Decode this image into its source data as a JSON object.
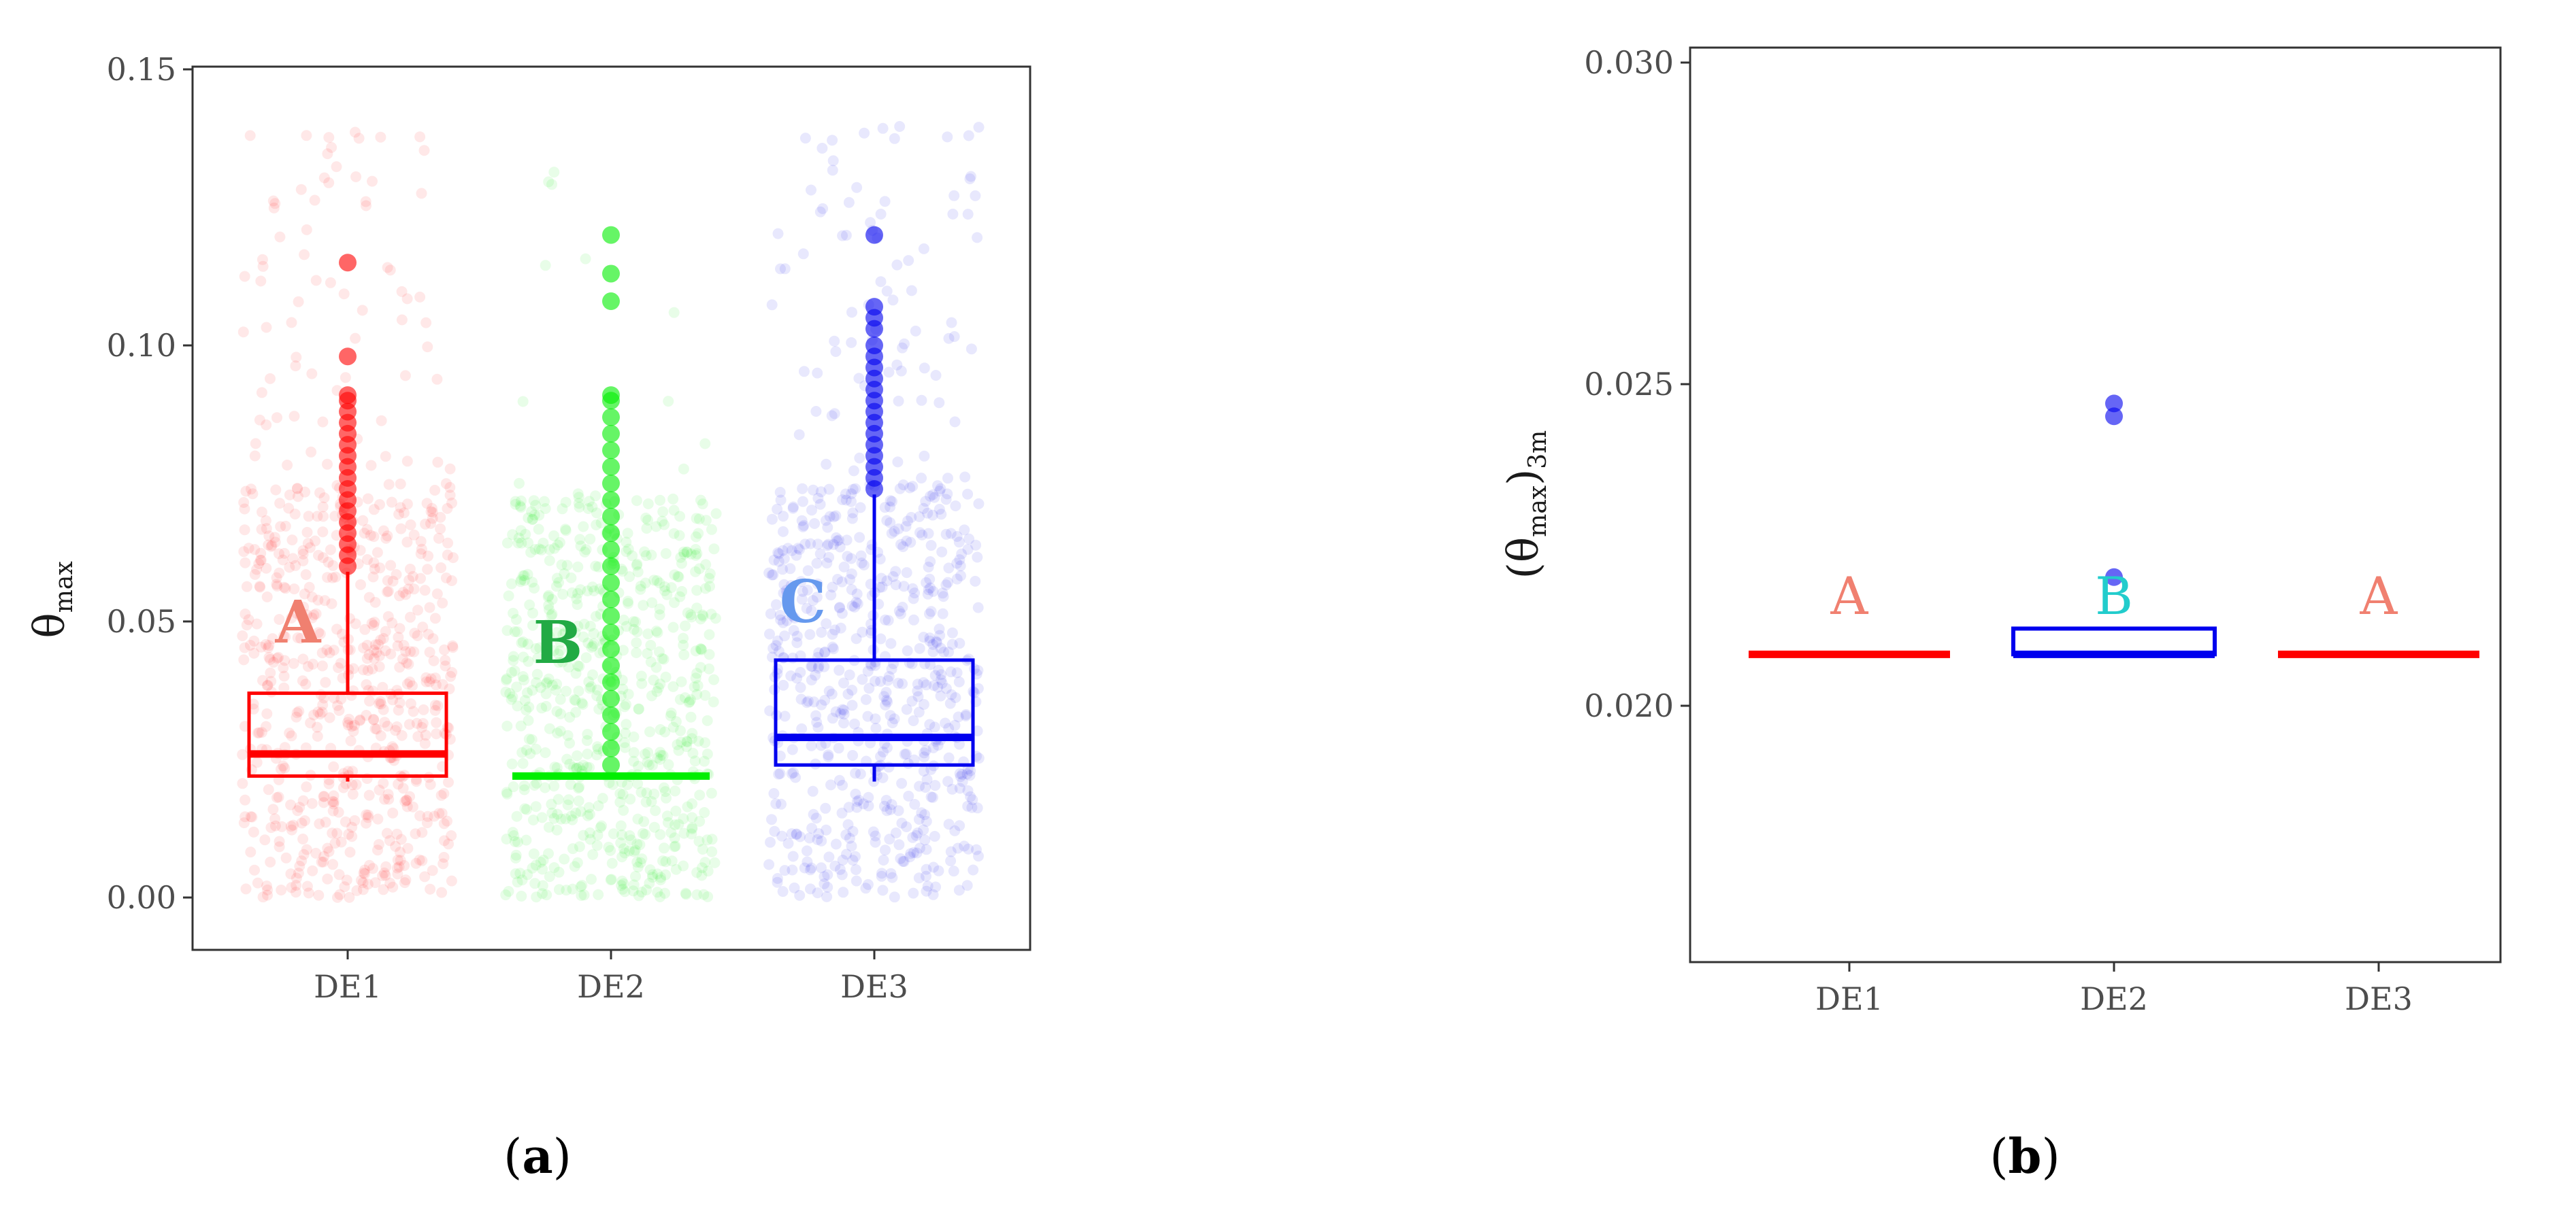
{
  "chart_data": [
    {
      "type": "boxplot",
      "panel_label": "(a)",
      "panel_label_parts": {
        "open": "(",
        "letter": "a",
        "close": ")"
      },
      "ylabel_main": "θ",
      "ylabel_sub": "max",
      "xlabel": "",
      "ylim": [
        -0.01,
        0.15
      ],
      "yticks": [
        "0.00",
        "0.05",
        "0.10",
        "0.15"
      ],
      "ytick_values": [
        0.0,
        0.05,
        0.1,
        0.15
      ],
      "categories": [
        "DE1",
        "DE2",
        "DE3"
      ],
      "jitter": true,
      "grid": false,
      "series": [
        {
          "category": "DE1",
          "color": "#ff0000",
          "q1": 0.022,
          "median": 0.026,
          "q3": 0.037,
          "whisker_low": 0.021,
          "whisker_high": 0.059,
          "outliers": [
            0.06,
            0.062,
            0.064,
            0.066,
            0.068,
            0.07,
            0.072,
            0.074,
            0.076,
            0.078,
            0.08,
            0.082,
            0.084,
            0.086,
            0.088,
            0.09,
            0.091,
            0.098,
            0.115
          ],
          "group_letter": "A",
          "letter_color": "#f08070"
        },
        {
          "category": "DE2",
          "color": "#00ee00",
          "q1": 0.022,
          "median": 0.022,
          "q3": 0.022,
          "whisker_low": 0.022,
          "whisker_high": 0.022,
          "outliers": [
            0.024,
            0.027,
            0.03,
            0.033,
            0.036,
            0.039,
            0.042,
            0.045,
            0.048,
            0.051,
            0.054,
            0.057,
            0.06,
            0.063,
            0.066,
            0.069,
            0.072,
            0.075,
            0.078,
            0.081,
            0.084,
            0.087,
            0.09,
            0.091,
            0.108,
            0.113,
            0.12
          ],
          "group_letter": "B",
          "letter_color": "#22aa44"
        },
        {
          "category": "DE3",
          "color": "#0000ee",
          "q1": 0.024,
          "median": 0.029,
          "q3": 0.043,
          "whisker_low": 0.021,
          "whisker_high": 0.073,
          "outliers": [
            0.074,
            0.076,
            0.078,
            0.08,
            0.082,
            0.084,
            0.086,
            0.088,
            0.09,
            0.092,
            0.094,
            0.096,
            0.098,
            0.1,
            0.103,
            0.105,
            0.107,
            0.12
          ],
          "group_letter": "C",
          "letter_color": "#6699ee"
        }
      ]
    },
    {
      "type": "boxplot",
      "panel_label": "(b)",
      "panel_label_parts": {
        "open": "(",
        "letter": "b",
        "close": ")"
      },
      "ylabel_main": "(θ",
      "ylabel_sub_inner": "max",
      "ylabel_close": ")",
      "ylabel_sub": "3m",
      "xlabel": "",
      "ylim": [
        0.0161,
        0.0302
      ],
      "yticks": [
        "0.020",
        "0.025",
        "0.030"
      ],
      "ytick_values": [
        0.02,
        0.025,
        0.03
      ],
      "categories": [
        "DE1",
        "DE2",
        "DE3"
      ],
      "jitter": false,
      "grid": false,
      "series": [
        {
          "category": "DE1",
          "color": "#ff0000",
          "q1": 0.0208,
          "median": 0.0208,
          "q3": 0.0208,
          "outliers": [],
          "group_letter": "A",
          "letter_color": "#f08070"
        },
        {
          "category": "DE2",
          "color": "#0000ee",
          "q1": 0.0208,
          "median": 0.0208,
          "q3": 0.0212,
          "outliers": [
            0.022,
            0.0245,
            0.0247
          ],
          "group_letter": "B",
          "letter_color": "#22cccc"
        },
        {
          "category": "DE3",
          "color": "#ff0000",
          "q1": 0.0208,
          "median": 0.0208,
          "q3": 0.0208,
          "outliers": [],
          "group_letter": "A",
          "letter_color": "#f08070"
        }
      ]
    }
  ]
}
